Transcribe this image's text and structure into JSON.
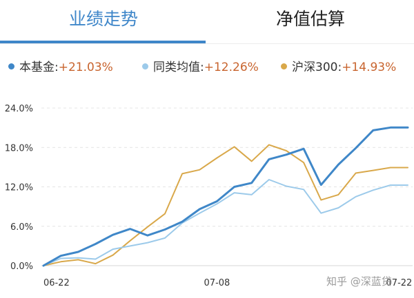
{
  "tabs": [
    {
      "label": "业绩走势",
      "active": true
    },
    {
      "label": "净值估算",
      "active": false
    }
  ],
  "legend": [
    {
      "name": "本基金:",
      "value": "+21.03%",
      "color": "#3f87c8"
    },
    {
      "name": "同类均值:",
      "value": "+12.26%",
      "color": "#9ccaea"
    },
    {
      "name": "沪深300:",
      "value": "+14.93%",
      "color": "#d9a84a"
    }
  ],
  "watermark": "知乎 @深蓝贷",
  "chart_data": {
    "type": "line",
    "x": [
      0,
      1,
      2,
      3,
      4,
      5,
      6,
      7,
      8,
      9,
      10,
      11,
      12,
      13,
      14,
      15,
      16,
      17,
      18,
      19,
      20,
      21
    ],
    "xtick_labels": [
      {
        "x": 0.75,
        "label": "06-22"
      },
      {
        "x": 10,
        "label": "07-08"
      },
      {
        "x": 20.5,
        "label": "07-22"
      }
    ],
    "yticks": [
      0,
      6,
      12,
      18,
      24
    ],
    "ytick_labels": [
      "0.0%",
      "6.0%",
      "12.0%",
      "18.0%",
      "24.0%"
    ],
    "ylim": [
      0,
      24
    ],
    "grid": "horizontal-dashed",
    "series": [
      {
        "name": "本基金",
        "color": "#3f87c8",
        "width": 3,
        "values": [
          0,
          1.5,
          2.1,
          3.3,
          4.7,
          5.6,
          4.6,
          5.5,
          6.7,
          8.6,
          9.8,
          12.0,
          12.6,
          16.2,
          16.9,
          17.8,
          12.3,
          15.4,
          17.9,
          20.6,
          21.03,
          21.03
        ]
      },
      {
        "name": "同类均值",
        "color": "#9ccaea",
        "width": 2,
        "values": [
          0,
          1.1,
          1.2,
          1.0,
          2.5,
          3.0,
          3.5,
          4.2,
          6.5,
          8.0,
          9.4,
          11.1,
          10.8,
          13.1,
          12.1,
          11.6,
          8.0,
          8.8,
          10.5,
          11.5,
          12.26,
          12.26
        ]
      },
      {
        "name": "沪深300",
        "color": "#d9a84a",
        "width": 2,
        "values": [
          0,
          0.6,
          0.9,
          0.3,
          1.6,
          3.8,
          5.9,
          7.9,
          14.0,
          14.6,
          16.4,
          18.1,
          15.9,
          18.4,
          17.5,
          15.7,
          10.0,
          10.8,
          14.1,
          14.5,
          14.93,
          14.93
        ]
      }
    ]
  }
}
